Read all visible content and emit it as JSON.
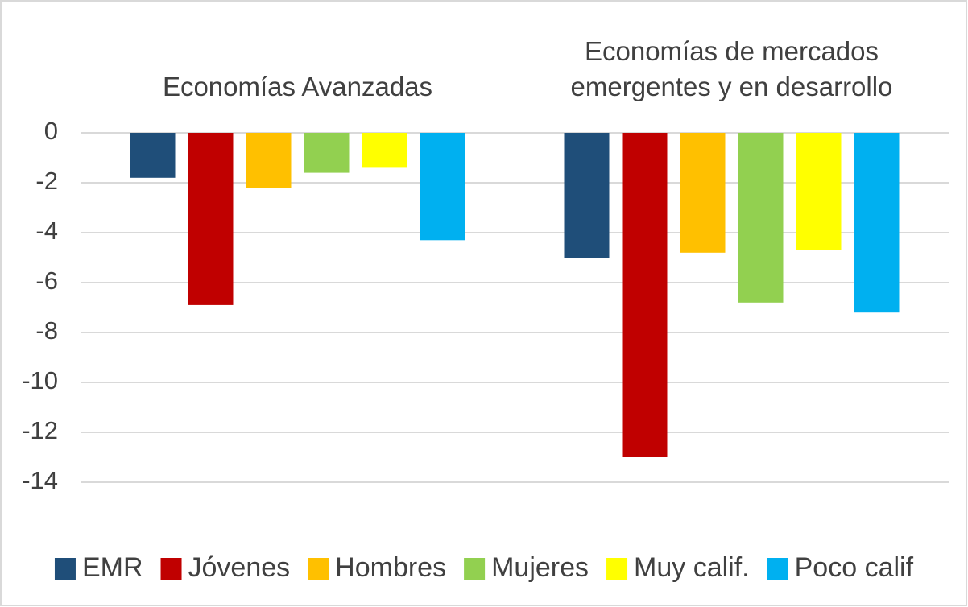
{
  "chart_data": {
    "type": "bar",
    "categories": [
      "Economías Avanzadas",
      "Economías de mercados emergentes y en desarrollo"
    ],
    "series": [
      {
        "name": "EMR",
        "color": "#1f4e79",
        "values": [
          -1.8,
          -5.0
        ]
      },
      {
        "name": "Jóvenes",
        "color": "#c00000",
        "values": [
          -6.9,
          -13.0
        ]
      },
      {
        "name": "Hombres",
        "color": "#ffc000",
        "values": [
          -2.2,
          -4.8
        ]
      },
      {
        "name": "Mujeres",
        "color": "#92d050",
        "values": [
          -1.6,
          -6.8
        ]
      },
      {
        "name": "Muy calif.",
        "color": "#ffff00",
        "values": [
          -1.4,
          -4.7
        ]
      },
      {
        "name": "Poco calif",
        "color": "#00b0f0",
        "values": [
          -4.3,
          -7.2
        ]
      }
    ],
    "ylim": [
      -14,
      0
    ],
    "yticks": [
      0,
      -2,
      -4,
      -6,
      -8,
      -10,
      -12,
      -14
    ],
    "grid": true,
    "legend": "bottom"
  }
}
